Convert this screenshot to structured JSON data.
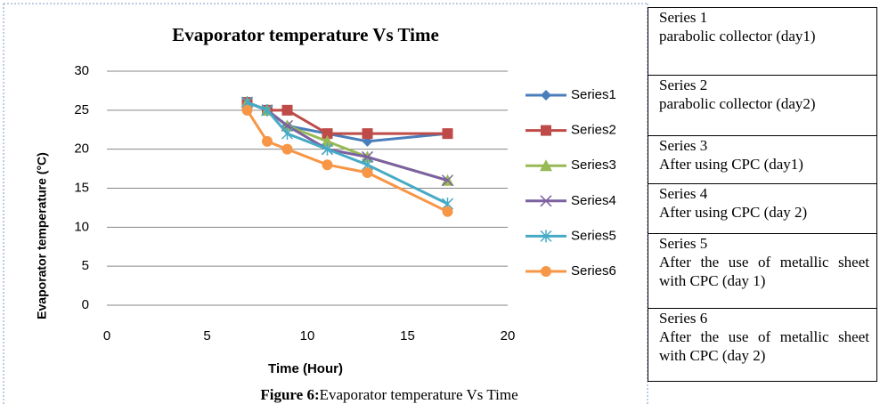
{
  "chart_data": {
    "type": "line",
    "title": "Evaporator temperature Vs Time",
    "xlabel": "Time (Hour)",
    "ylabel": "Evaporator temperature (°C)",
    "x": [
      7,
      8,
      9,
      11,
      13,
      17
    ],
    "series": [
      {
        "name": "Series1",
        "color": "#4a7ebb",
        "marker": "diamond",
        "values": [
          26,
          25,
          23,
          22,
          21,
          22
        ]
      },
      {
        "name": "Series2",
        "color": "#be4b48",
        "marker": "square",
        "values": [
          26,
          25,
          25,
          22,
          22,
          22
        ]
      },
      {
        "name": "Series3",
        "color": "#98b954",
        "marker": "triangle",
        "values": [
          26,
          25,
          23,
          21,
          19,
          16
        ]
      },
      {
        "name": "Series4",
        "color": "#7d60a0",
        "marker": "x",
        "values": [
          26,
          25,
          23,
          20,
          19,
          16
        ]
      },
      {
        "name": "Series5",
        "color": "#46aac5",
        "marker": "star",
        "values": [
          26,
          25,
          22,
          20,
          18,
          13
        ]
      },
      {
        "name": "Series6",
        "color": "#f79646",
        "marker": "circle",
        "values": [
          25,
          21,
          20,
          18,
          17,
          12
        ]
      }
    ],
    "xlim": [
      0,
      20
    ],
    "xticks": [
      0,
      5,
      10,
      15,
      20
    ],
    "ylim": [
      0,
      30
    ],
    "yticks": [
      0,
      5,
      10,
      15,
      20,
      25,
      30
    ],
    "grid": true,
    "legend": "right"
  },
  "caption": {
    "label": "Figure 6:",
    "text": "Evaporator temperature Vs Time"
  },
  "table": {
    "rows": [
      {
        "title": "Series 1",
        "text": "parabolic collector (day1)"
      },
      {
        "title": "Series 2",
        "text": "parabolic collector (day2)"
      },
      {
        "title": "Series 3",
        "text": "After using CPC (day1)"
      },
      {
        "title": "Series 4",
        "text": "After using CPC (day 2)"
      },
      {
        "title": "Series 5",
        "text": "After the use of metallic sheet with CPC (day 1)"
      },
      {
        "title": "Series 6",
        "text": "After the use of metallic sheet with CPC (day 2)"
      }
    ]
  }
}
